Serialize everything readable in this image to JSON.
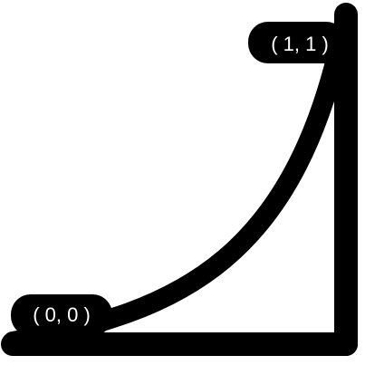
{
  "diagram": {
    "start_label": "( 0, 0 )",
    "end_label": "( 1, 1 )",
    "colors": {
      "stroke": "#000000",
      "label_background": "#000000",
      "label_text": "#ffffff",
      "background": "#ffffff"
    }
  }
}
